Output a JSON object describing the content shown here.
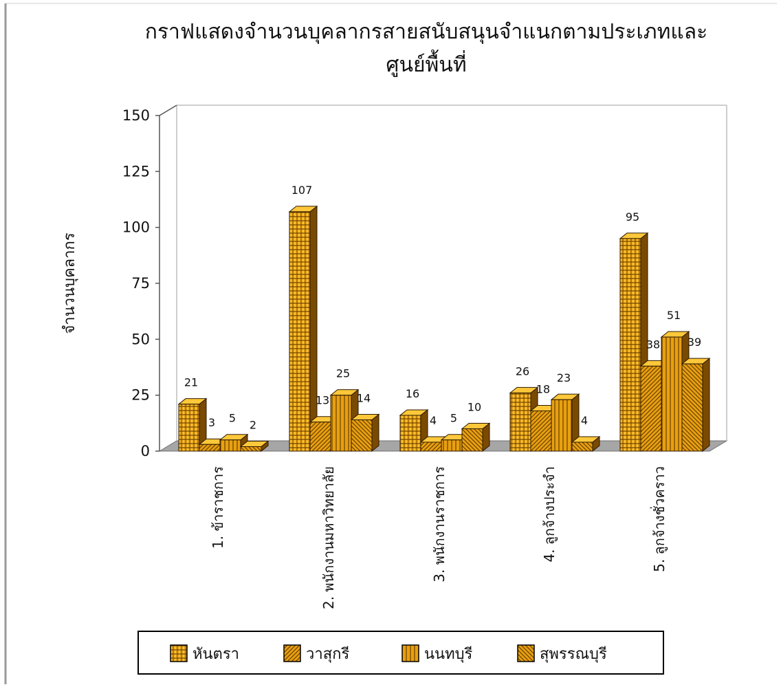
{
  "chart_data": {
    "type": "bar",
    "title_lines": [
      "กราฟแสดงจำนวนบุคลากรสายสนับสนุนจำแนกตามประเภทและ",
      "ศูนย์พื้นที่"
    ],
    "ylabel": "จำนวนบุคลากร",
    "ylim": [
      0,
      150
    ],
    "yticks": [
      "0",
      "25",
      "50",
      "75",
      "100",
      "125",
      "150"
    ],
    "categories": [
      "1. ข้าราชการ",
      "2. พนักงานมหาวิทยาลัย",
      "3. พนักงานราชการ",
      "4. ลูกจ้างประจำ",
      "5. ลูกจ้างชั่วคราว"
    ],
    "series": [
      {
        "name": "หันตรา",
        "values": [
          21,
          107,
          16,
          26,
          95
        ]
      },
      {
        "name": "วาสุกรี",
        "values": [
          3,
          13,
          4,
          18,
          38
        ]
      },
      {
        "name": "นนทบุรี",
        "values": [
          5,
          25,
          5,
          23,
          51
        ]
      },
      {
        "name": "สุพรรณบุรี",
        "values": [
          2,
          14,
          10,
          4,
          39
        ]
      }
    ],
    "data_labels": true,
    "legend_position": "bottom",
    "grid": false,
    "style": "3d-clustered-column",
    "colors": {
      "bar": "#e09a00",
      "bar_dark": "#8a5500",
      "bar_light": "#ffd060",
      "floor": "#a6a6a6",
      "wall_line": "#bdbdbd"
    }
  }
}
